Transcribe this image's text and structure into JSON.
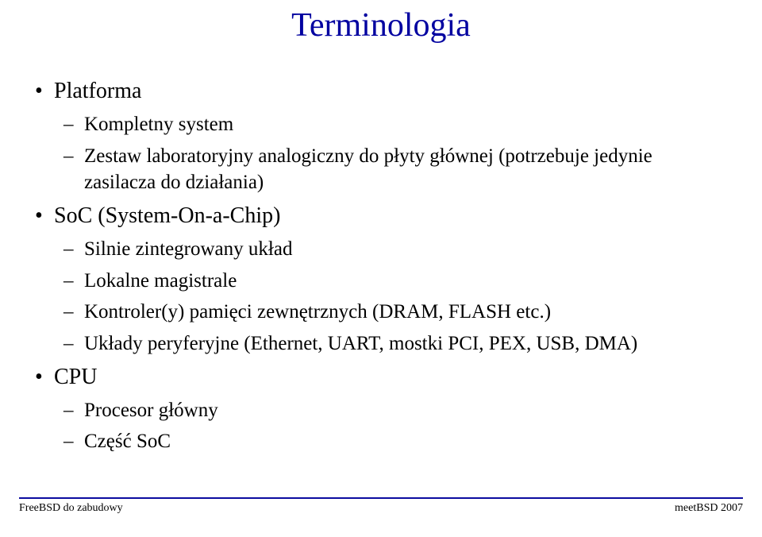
{
  "title": "Terminologia",
  "title_color": "#0000a0",
  "bullets": {
    "platforma": {
      "label": "Platforma",
      "sub": [
        "Kompletny system",
        "Zestaw laboratoryjny analogiczny do płyty głównej (potrzebuje jedynie zasilacza do działania)"
      ]
    },
    "soc": {
      "label": "SoC (System-On-a-Chip)",
      "sub": [
        "Silnie zintegrowany układ",
        "Lokalne magistrale",
        "Kontroler(y) pamięci zewnętrznych (DRAM, FLASH etc.)",
        "Układy peryferyjne (Ethernet, UART, mostki PCI, PEX, USB, DMA)"
      ]
    },
    "cpu": {
      "label": "CPU",
      "sub": [
        "Procesor główny",
        "Część SoC"
      ]
    }
  },
  "footer": {
    "left": "FreeBSD do zabudowy",
    "right": "meetBSD 2007",
    "line_color": "#0c0ca0"
  }
}
